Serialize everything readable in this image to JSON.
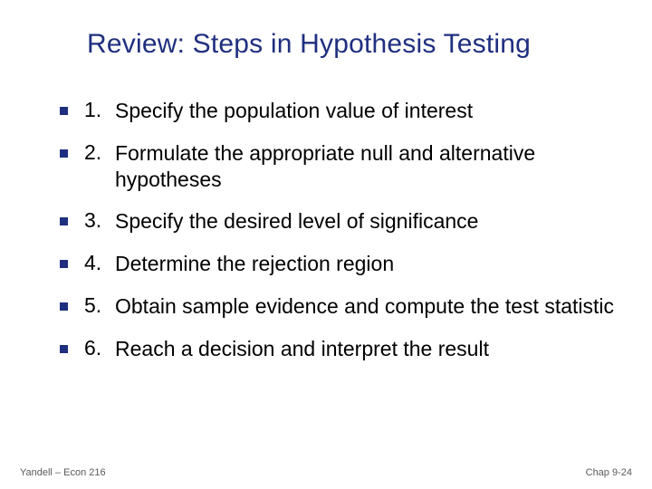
{
  "slide": {
    "title": "Review: Steps in Hypothesis Testing",
    "title_color": "#1f2f7f",
    "title_fontsize": 30,
    "bullet_color": "#1f2f7f",
    "body_color": "#000000",
    "body_fontsize": 23,
    "footer_color": "#5a5a5a",
    "footer_fontsize": 11,
    "items": [
      {
        "num": "1.",
        "text": "Specify the population value of interest"
      },
      {
        "num": "2.",
        "text": "Formulate the appropriate null and alternative hypotheses"
      },
      {
        "num": "3.",
        "text": "Specify the desired level of significance"
      },
      {
        "num": "4.",
        "text": "Determine the rejection region"
      },
      {
        "num": "5.",
        "text": "Obtain sample evidence and compute the test statistic"
      },
      {
        "num": "6.",
        "text": "Reach a decision and interpret the result"
      }
    ],
    "footer_left": "Yandell – Econ 216",
    "footer_right": "Chap 9-24"
  }
}
